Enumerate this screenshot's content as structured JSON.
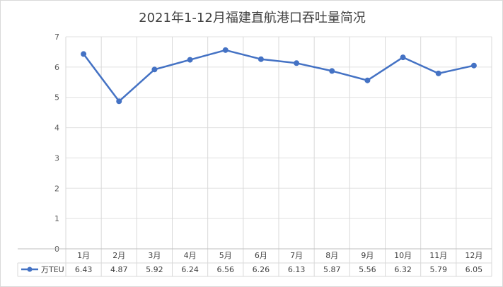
{
  "chart_data": {
    "type": "line",
    "title": "2021年1-12月福建直航港口吞吐量简况",
    "categories": [
      "1月",
      "2月",
      "3月",
      "4月",
      "5月",
      "6月",
      "7月",
      "8月",
      "9月",
      "10月",
      "11月",
      "12月"
    ],
    "series": [
      {
        "name": "万TEU",
        "values": [
          6.43,
          4.87,
          5.92,
          6.24,
          6.56,
          6.26,
          6.13,
          5.87,
          5.56,
          6.32,
          5.79,
          6.05
        ],
        "labels": [
          "6.43",
          "4.87",
          "5.92",
          "6.24",
          "6.56",
          "6.26",
          "6.13",
          "5.87",
          "5.56",
          "6.32",
          "5.79",
          "6.05"
        ]
      }
    ],
    "ylim": [
      0,
      7
    ],
    "yticks": [
      "0",
      "1",
      "2",
      "3",
      "4",
      "5",
      "6",
      "7"
    ],
    "grid": true,
    "data_table": true,
    "line_color": "#4472c4"
  }
}
